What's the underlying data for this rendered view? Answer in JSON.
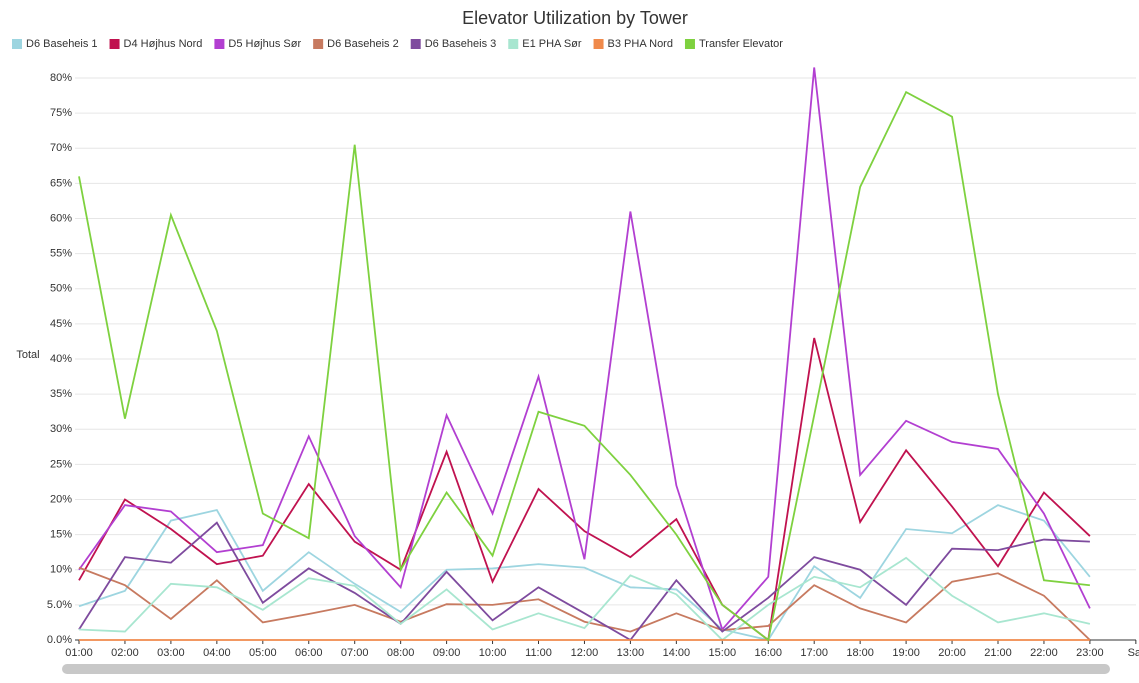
{
  "chart_data": {
    "type": "line",
    "title": "Elevator Utilization by Tower",
    "ylabel": "Total",
    "categories": [
      "01:00",
      "02:00",
      "03:00",
      "04:00",
      "05:00",
      "06:00",
      "07:00",
      "08:00",
      "09:00",
      "10:00",
      "11:00",
      "12:00",
      "13:00",
      "14:00",
      "15:00",
      "16:00",
      "17:00",
      "18:00",
      "19:00",
      "20:00",
      "21:00",
      "22:00",
      "23:00",
      "Sat"
    ],
    "ylim": [
      0,
      82
    ],
    "yticks": [
      {
        "value": 0,
        "label": "0.0%"
      },
      {
        "value": 5,
        "label": "5.0%"
      },
      {
        "value": 10,
        "label": "10%"
      },
      {
        "value": 15,
        "label": "15%"
      },
      {
        "value": 20,
        "label": "20%"
      },
      {
        "value": 25,
        "label": "25%"
      },
      {
        "value": 30,
        "label": "30%"
      },
      {
        "value": 35,
        "label": "35%"
      },
      {
        "value": 40,
        "label": "40%"
      },
      {
        "value": 45,
        "label": "45%"
      },
      {
        "value": 50,
        "label": "50%"
      },
      {
        "value": 55,
        "label": "55%"
      },
      {
        "value": 60,
        "label": "60%"
      },
      {
        "value": 65,
        "label": "65%"
      },
      {
        "value": 70,
        "label": "70%"
      },
      {
        "value": 75,
        "label": "75%"
      },
      {
        "value": 80,
        "label": "80%"
      }
    ],
    "grid": true,
    "series": [
      {
        "name": "D6 Baseheis 1",
        "color": "#9dd5e0",
        "values": [
          4.8,
          7,
          17,
          18.5,
          7,
          12.5,
          8,
          4,
          10,
          10.2,
          10.8,
          10.3,
          7.5,
          7.2,
          1.5,
          0,
          10.5,
          6,
          15.8,
          15.2,
          19.2,
          17,
          9,
          null
        ]
      },
      {
        "name": "D4 Højhus Nord",
        "color": "#c0124f",
        "values": [
          8.5,
          20,
          15.8,
          10.8,
          12,
          22.2,
          14,
          10,
          26.8,
          8.3,
          21.5,
          15.5,
          11.8,
          17.2,
          5,
          0,
          43,
          16.8,
          27,
          19,
          10.5,
          21,
          14.8,
          null
        ]
      },
      {
        "name": "D5 Højhus Sør",
        "color": "#b23fd1",
        "values": [
          10,
          19.2,
          18.3,
          12.5,
          13.5,
          29,
          14.8,
          7.5,
          32,
          18,
          37.5,
          11.5,
          61,
          22,
          1.5,
          9,
          81.5,
          23.5,
          31.2,
          28.2,
          27.2,
          18,
          4.5,
          null
        ]
      },
      {
        "name": "D6 Baseheis 2",
        "color": "#c77a60",
        "values": [
          10.3,
          7.8,
          3,
          8.5,
          2.5,
          3.7,
          5,
          2.6,
          5.1,
          5,
          5.8,
          2.6,
          1.2,
          3.8,
          1.4,
          2,
          7.8,
          4.5,
          2.5,
          8.3,
          9.5,
          6.3,
          0,
          null
        ]
      },
      {
        "name": "D6 Baseheis 3",
        "color": "#7e4b9e",
        "values": [
          1.5,
          11.8,
          11,
          16.7,
          5.3,
          10.2,
          6.7,
          2.3,
          9.7,
          2.8,
          7.5,
          3.8,
          0,
          8.5,
          1.2,
          6,
          11.8,
          10,
          5,
          13,
          12.8,
          14.3,
          14,
          null
        ]
      },
      {
        "name": "E1 PHA Sør",
        "color": "#a8e6d0",
        "values": [
          1.5,
          1.2,
          8,
          7.5,
          4.3,
          8.8,
          7.7,
          2.3,
          7.2,
          1.5,
          3.8,
          1.7,
          9.2,
          6.5,
          0,
          5,
          9,
          7.5,
          11.7,
          6.3,
          2.5,
          3.8,
          2.3,
          null
        ]
      },
      {
        "name": "B3 PHA Nord",
        "color": "#f08a4b",
        "values": [
          0,
          0,
          0,
          0,
          0,
          0,
          0,
          0,
          0,
          0,
          0,
          0,
          0,
          0,
          0,
          0,
          0,
          0,
          0,
          0,
          0,
          0,
          0,
          null
        ]
      },
      {
        "name": "Transfer Elevator",
        "color": "#7ed13f",
        "values": [
          66,
          31.5,
          60.5,
          44,
          18,
          14.5,
          70.5,
          10,
          21,
          12,
          32.5,
          30.5,
          23.5,
          15,
          5,
          0,
          32,
          64.5,
          78,
          74.5,
          35,
          8.5,
          7.8,
          null
        ]
      }
    ]
  }
}
